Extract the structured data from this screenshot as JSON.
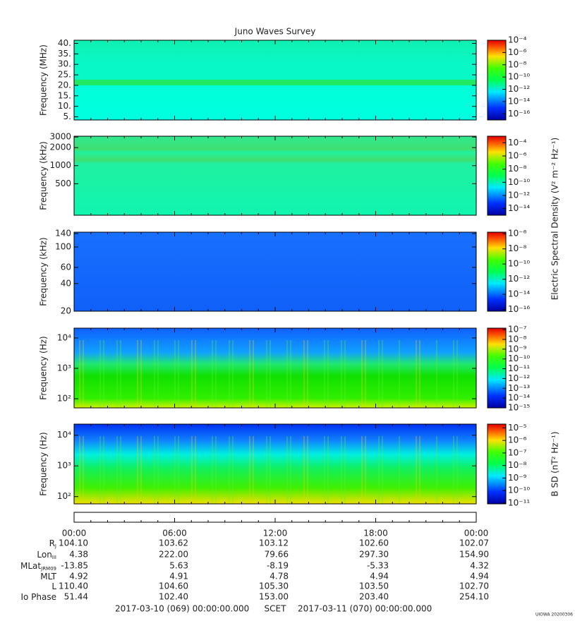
{
  "chart_data": {
    "type": "spectrogram",
    "title": "Juno Waves Survey",
    "panels": [
      {
        "ylabel": "Frequency (MHz)",
        "log": false,
        "ylim": [
          3.5,
          41.5
        ],
        "yticks": [
          {
            "value": 5,
            "label": "5."
          },
          {
            "value": 10,
            "label": "10."
          },
          {
            "value": 15,
            "label": "15."
          },
          {
            "value": 20,
            "label": "20."
          },
          {
            "value": 25,
            "label": "25."
          },
          {
            "value": 30,
            "label": "30."
          },
          {
            "value": 35,
            "label": "35."
          },
          {
            "value": 40,
            "label": "40."
          }
        ],
        "colorbar": {
          "log": true,
          "ylim": [
            1e-17,
            0.0001
          ],
          "ticks": [
            {
              "value": 0.0001,
              "label": "10⁻⁴"
            },
            {
              "value": 1e-06,
              "label": "10⁻⁶"
            },
            {
              "value": 1e-08,
              "label": "10⁻⁸"
            },
            {
              "value": 1e-10,
              "label": "10⁻¹⁰"
            },
            {
              "value": 1e-12,
              "label": "10⁻¹²"
            },
            {
              "value": 1e-14,
              "label": "10⁻¹⁴"
            },
            {
              "value": 1e-16,
              "label": "10⁻¹⁶"
            }
          ]
        }
      },
      {
        "ylabel": "Frequency (kHz)",
        "log": true,
        "ylim": [
          149,
          3100
        ],
        "yticks": [
          500,
          1000,
          2000,
          3000
        ],
        "colorbar": {
          "log": true,
          "ylim": [
            1e-15,
            0.001
          ],
          "label": "Electric Spectral Density (V² m⁻² Hz⁻¹)",
          "ticks": [
            {
              "value": 0.0001,
              "label": "10⁻⁴"
            },
            {
              "value": 1e-06,
              "label": "10⁻⁶"
            },
            {
              "value": 1e-08,
              "label": "10⁻⁸"
            },
            {
              "value": 1e-10,
              "label": "10⁻¹⁰"
            },
            {
              "value": 1e-12,
              "label": "10⁻¹²"
            },
            {
              "value": 1e-14,
              "label": "10⁻¹⁴"
            }
          ]
        }
      },
      {
        "ylabel": "Frequency (kHz)",
        "log": true,
        "ylim": [
          20,
          145
        ],
        "yticks": [
          20,
          40,
          60,
          100,
          140
        ],
        "colorbar": {
          "log": true,
          "ylim": [
            6e-17,
            1.6e-06
          ],
          "ticks": [
            {
              "value": 1e-06,
              "label": "10⁻⁶"
            },
            {
              "value": 1e-08,
              "label": "10⁻⁸"
            },
            {
              "value": 1e-10,
              "label": "10⁻¹⁰"
            },
            {
              "value": 1e-12,
              "label": "10⁻¹²"
            },
            {
              "value": 1e-14,
              "label": "10⁻¹⁴"
            },
            {
              "value": 1e-16,
              "label": "10⁻¹⁶"
            }
          ]
        }
      },
      {
        "ylabel": "Frequency (Hz)",
        "log": true,
        "ylim": [
          50,
          21000
        ],
        "yticks": [
          {
            "value": 100,
            "label": "10²"
          },
          {
            "value": 1000,
            "label": "10³"
          },
          {
            "value": 10000,
            "label": "10⁴"
          }
        ],
        "colorbar": {
          "log": true,
          "ylim": [
            1e-15,
            1.4e-07
          ],
          "ticks": [
            {
              "value": 1e-07,
              "label": "10⁻⁷"
            },
            {
              "value": 1e-08,
              "label": "10⁻⁸"
            },
            {
              "value": 1e-09,
              "label": "10⁻⁹"
            },
            {
              "value": 1e-10,
              "label": "10⁻¹⁰"
            },
            {
              "value": 1e-11,
              "label": "10⁻¹¹"
            },
            {
              "value": 1e-12,
              "label": "10⁻¹²"
            },
            {
              "value": 1e-13,
              "label": "10⁻¹³"
            },
            {
              "value": 1e-14,
              "label": "10⁻¹⁴"
            },
            {
              "value": 1e-15,
              "label": "10⁻¹⁵"
            }
          ]
        }
      },
      {
        "ylabel": "Frequency (Hz)",
        "log": true,
        "ylim": [
          58,
          23000
        ],
        "yticks": [
          {
            "value": 100,
            "label": "10²"
          },
          {
            "value": 1000,
            "label": "10³"
          },
          {
            "value": 10000,
            "label": "10⁴"
          }
        ],
        "colorbar": {
          "log": true,
          "ylim": [
            8.7e-12,
            2e-05
          ],
          "label": "B SD (nT² Hz⁻¹)",
          "ticks": [
            {
              "value": 1e-05,
              "label": "10⁻⁵"
            },
            {
              "value": 1e-06,
              "label": "10⁻⁶"
            },
            {
              "value": 1e-07,
              "label": "10⁻⁷"
            },
            {
              "value": 1e-08,
              "label": "10⁻⁸"
            },
            {
              "value": 1e-09,
              "label": "10⁻⁹"
            },
            {
              "value": 1e-10,
              "label": "10⁻¹⁰"
            },
            {
              "value": 1e-11,
              "label": "10⁻¹¹"
            }
          ]
        }
      }
    ],
    "categories": [
      "00:00",
      "06:00",
      "12:00",
      "18:00",
      "00:00"
    ],
    "ephemeris": [
      {
        "name": "R",
        "sub": "J",
        "values": [
          "104.10",
          "103.62",
          "103.12",
          "102.60",
          "102.07"
        ]
      },
      {
        "name": "Lon",
        "sub": "III",
        "values": [
          "4.38",
          "222.00",
          "79.66",
          "297.30",
          "154.90"
        ]
      },
      {
        "name": "MLat",
        "sub": "JRM09",
        "values": [
          "-13.85",
          "5.63",
          "-8.19",
          "-5.33",
          "4.32"
        ]
      },
      {
        "name": "MLT",
        "values": [
          "4.92",
          "4.91",
          "4.78",
          "4.94",
          "4.94"
        ]
      },
      {
        "name": "L",
        "values": [
          "110.40",
          "104.60",
          "105.30",
          "103.50",
          "102.70"
        ]
      },
      {
        "name": "Io Phase",
        "values": [
          "51.44",
          "102.40",
          "153.00",
          "203.40",
          "254.10"
        ]
      }
    ],
    "footer": {
      "start": "2017-03-10 (069) 00:00:00.000",
      "frame": "SCET",
      "end": "2017-03-11 (070) 00:00:00.000"
    },
    "credit": "UIOWA 20200306"
  }
}
